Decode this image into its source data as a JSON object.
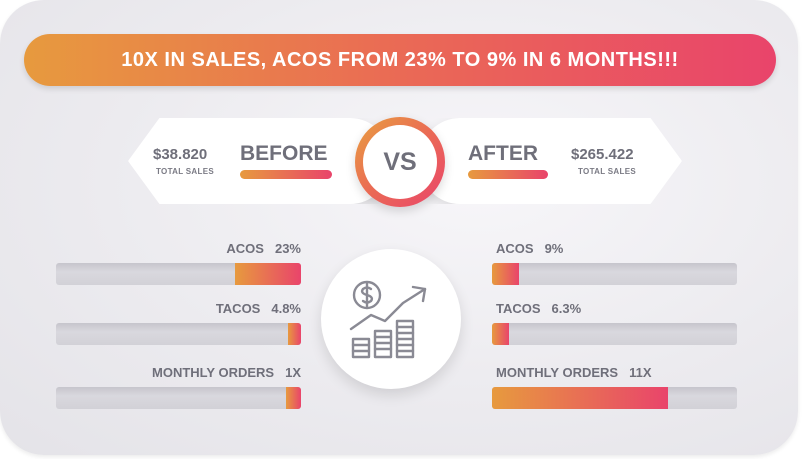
{
  "banner": {
    "title": "10X IN SALES, ACOS FROM 23% TO 9% IN 6 MONTHS!!!"
  },
  "before": {
    "label": "BEFORE",
    "amount": "$38.820",
    "amount_caption": "TOTAL SALES"
  },
  "after": {
    "label": "AFTER",
    "amount": "$265.422",
    "amount_caption": "TOTAL SALES"
  },
  "vs": {
    "label": "VS"
  },
  "metrics_before": [
    {
      "name": "ACOS",
      "value": "23%",
      "fill_fraction": 0.27
    },
    {
      "name": "TACOS",
      "value": "4.8%",
      "fill_fraction": 0.055
    },
    {
      "name": "MONTHLY ORDERS",
      "value": "1X",
      "fill_fraction": 0.06
    }
  ],
  "metrics_after": [
    {
      "name": "ACOS",
      "value": "9%",
      "fill_fraction": 0.11
    },
    {
      "name": "TACOS",
      "value": "6.3%",
      "fill_fraction": 0.07
    },
    {
      "name": "MONTHLY ORDERS",
      "value": "11X",
      "fill_fraction": 0.72
    }
  ],
  "center_icon": {
    "name": "sales-growth-icon"
  },
  "colors": {
    "gradient_start": "#e79a3e",
    "gradient_end": "#e9446b",
    "text": "#6f6f7a"
  }
}
